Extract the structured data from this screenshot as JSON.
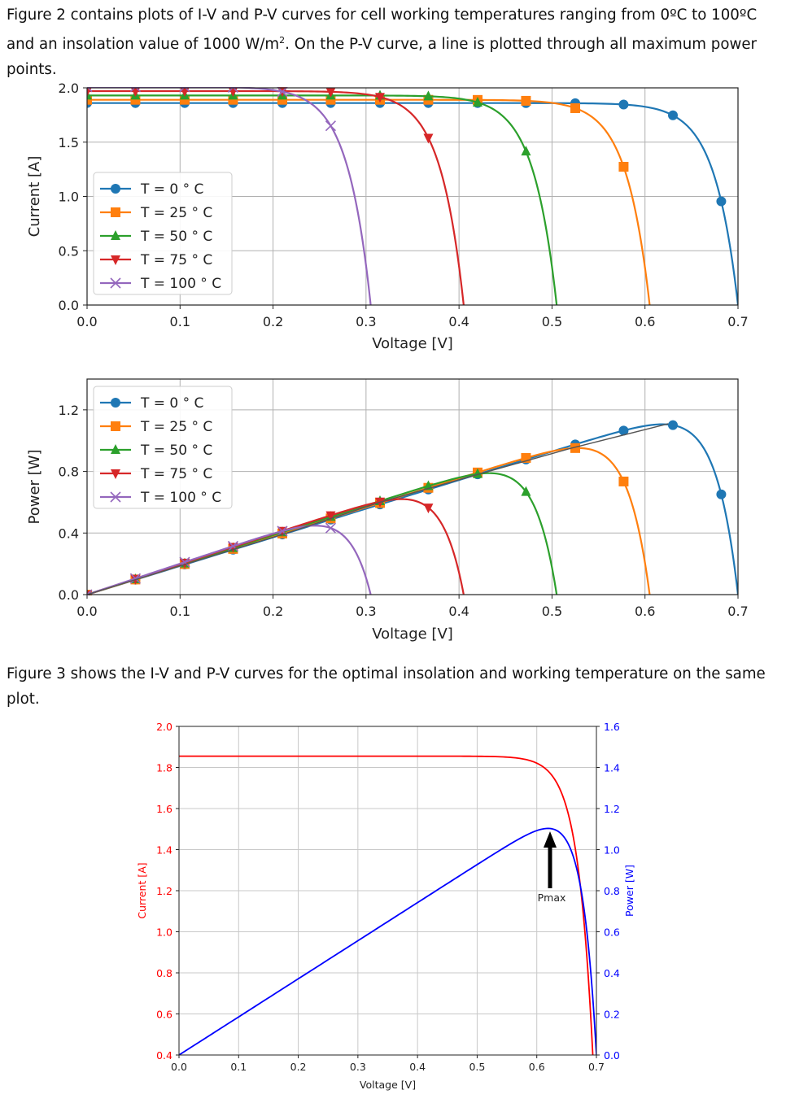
{
  "paragraphs": {
    "fig2_intro_a": "Figure 2 contains plots of I-V and P-V curves for cell working temperatures ranging from 0ºC to 100ºC and an insolation value of 1000 W/m",
    "fig2_intro_sup": "2",
    "fig2_intro_b": ". On the P-V curve, a line is plotted through all maximum power points.",
    "fig3_intro": "Figure 3 shows the I-V and P-V curves for the optimal insolation and working temperature on the same plot."
  },
  "chart_data": [
    {
      "type": "line",
      "title": "",
      "xlabel": "Voltage [V]",
      "ylabel": "Current [A]",
      "xlim": [
        0,
        0.7
      ],
      "ylim": [
        0,
        2.0
      ],
      "x_ticks": [
        "0.0",
        "0.1",
        "0.2",
        "0.3",
        "0.4",
        "0.5",
        "0.6",
        "0.7"
      ],
      "y_ticks": [
        "0.0",
        "0.5",
        "1.0",
        "1.5",
        "2.0"
      ],
      "grid": true,
      "legend_position": "lower-left",
      "series": [
        {
          "name": "T = 0 ° C",
          "color": "#1f77b4",
          "marker": "circle",
          "isc": 1.86,
          "voc": 0.7
        },
        {
          "name": "T = 25 ° C",
          "color": "#ff7f0e",
          "marker": "square",
          "isc": 1.89,
          "voc": 0.605
        },
        {
          "name": "T = 50 ° C",
          "color": "#2ca02c",
          "marker": "triangle-up",
          "isc": 1.93,
          "voc": 0.505
        },
        {
          "name": "T = 75 ° C",
          "color": "#d62728",
          "marker": "triangle-down",
          "isc": 1.97,
          "voc": 0.405
        },
        {
          "name": "T = 100 ° C",
          "color": "#9467bd",
          "marker": "x",
          "isc": 2.01,
          "voc": 0.305
        }
      ]
    },
    {
      "type": "line",
      "title": "",
      "xlabel": "Voltage [V]",
      "ylabel": "Power [W]",
      "xlim": [
        0,
        0.7
      ],
      "ylim": [
        0,
        1.4
      ],
      "x_ticks": [
        "0.0",
        "0.1",
        "0.2",
        "0.3",
        "0.4",
        "0.5",
        "0.6",
        "0.7"
      ],
      "y_ticks": [
        "0.0",
        "0.4",
        "0.8",
        "1.2"
      ],
      "grid": true,
      "legend_position": "upper-left",
      "series": [
        {
          "name": "T = 0 ° C",
          "color": "#1f77b4",
          "marker": "circle",
          "vmp": 0.625,
          "pmax": 1.11
        },
        {
          "name": "T = 25 ° C",
          "color": "#ff7f0e",
          "marker": "square",
          "vmp": 0.52,
          "pmax": 0.95
        },
        {
          "name": "T = 50 ° C",
          "color": "#2ca02c",
          "marker": "triangle-up",
          "vmp": 0.42,
          "pmax": 0.78
        },
        {
          "name": "T = 75 ° C",
          "color": "#d62728",
          "marker": "triangle-down",
          "vmp": 0.315,
          "pmax": 0.6
        },
        {
          "name": "T = 100 ° C",
          "color": "#9467bd",
          "marker": "x",
          "vmp": 0.22,
          "pmax": 0.41
        }
      ],
      "max_power_line": [
        [
          0.22,
          0.41
        ],
        [
          0.315,
          0.6
        ],
        [
          0.42,
          0.78
        ],
        [
          0.52,
          0.95
        ],
        [
          0.625,
          1.11
        ]
      ]
    },
    {
      "type": "line",
      "title": "",
      "xlabel": "Voltage  [V]",
      "ylabel_left": "Current  [A]",
      "ylabel_right": "Power  [W]",
      "xlim": [
        0,
        0.7
      ],
      "ylim_left": [
        0.4,
        2.0
      ],
      "ylim_right": [
        0,
        1.6
      ],
      "x_ticks": [
        "0.0",
        "0.1",
        "0.2",
        "0.3",
        "0.4",
        "0.5",
        "0.6",
        "0.7"
      ],
      "y_ticks_left": [
        "0.4",
        "0.6",
        "0.8",
        "1.0",
        "1.2",
        "1.4",
        "1.6",
        "1.8",
        "2.0"
      ],
      "y_ticks_right": [
        "0.0",
        "0.2",
        "0.4",
        "0.6",
        "0.8",
        "1.0",
        "1.2",
        "1.4",
        "1.6"
      ],
      "grid": true,
      "current_color": "#ff0000",
      "power_color": "#0000ff",
      "isc": 1.855,
      "voc": 0.7,
      "vmp": 0.625,
      "pmax": 1.11,
      "annotation": "Pmax"
    }
  ]
}
